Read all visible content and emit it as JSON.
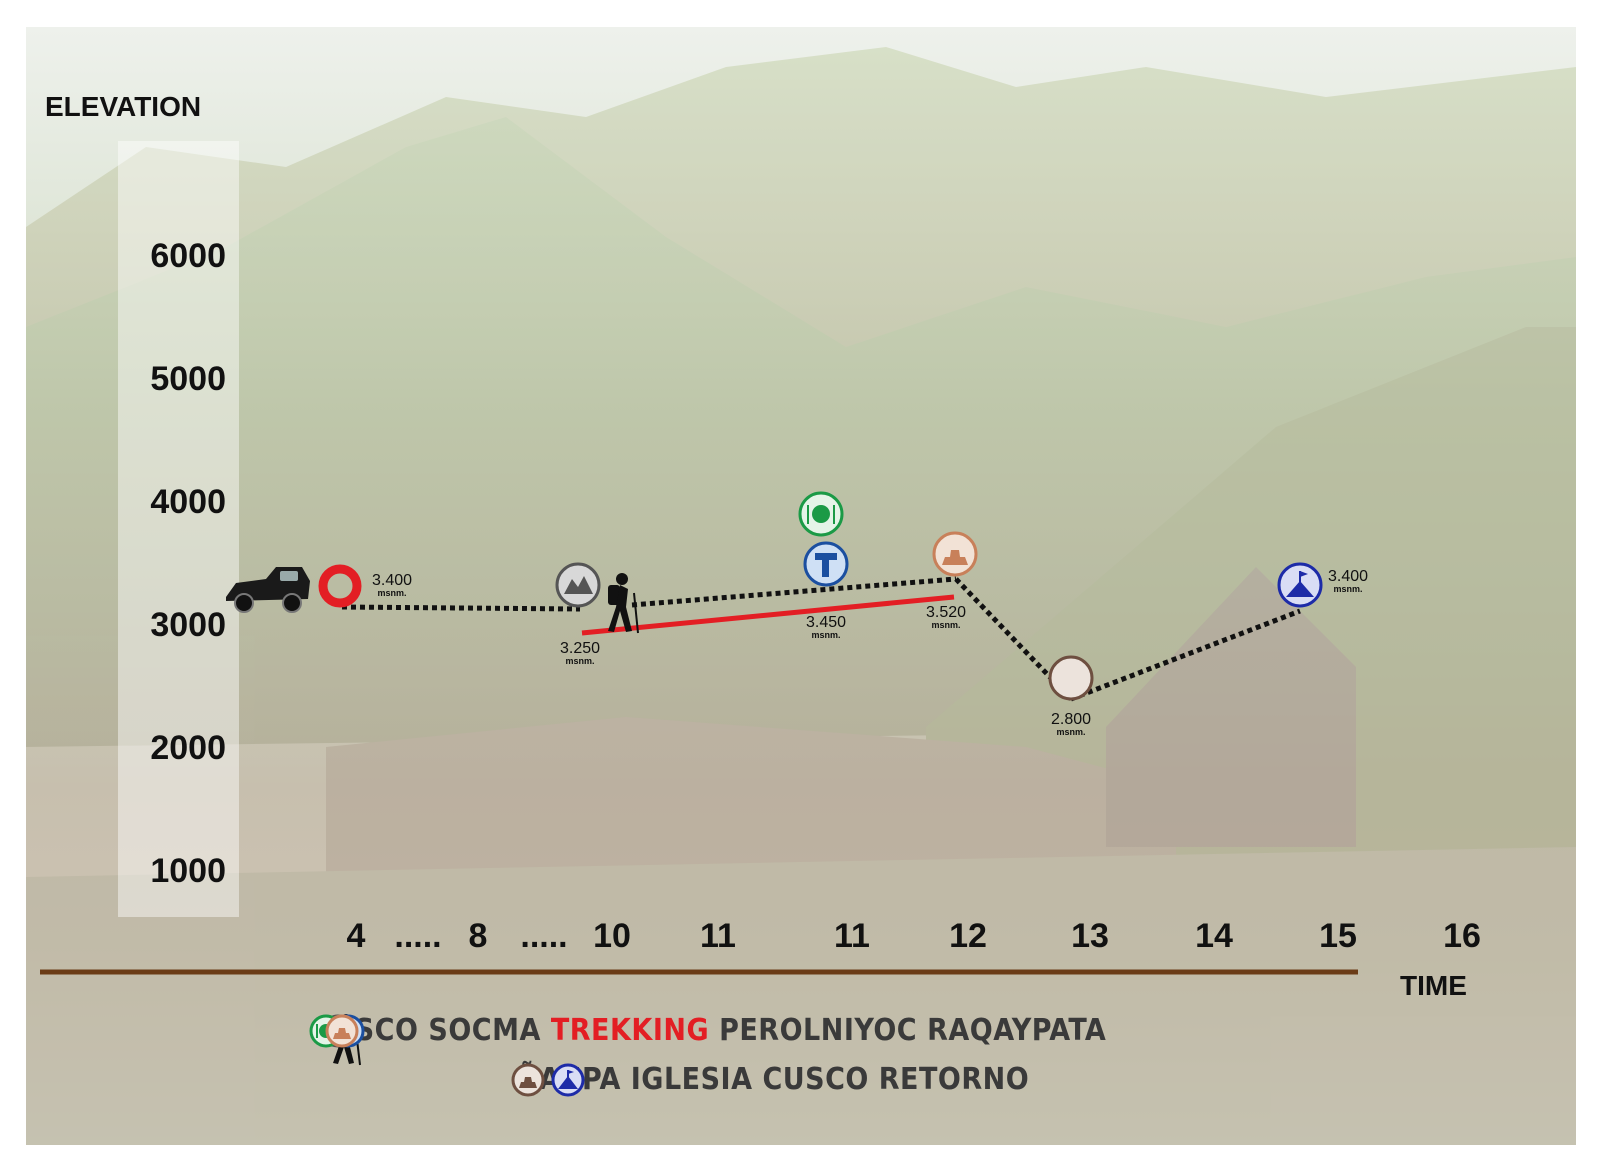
{
  "colors": {
    "dotted_line": "#111111",
    "trek_line": "#e31e24",
    "cusco": "#e31e24",
    "socma": "#555555",
    "perolniyoc_water": "#1b4fa0",
    "perolniyoc_food": "#1b9a46",
    "raqaypata": "#c8805a",
    "naupa": "#6e4f40",
    "cusco_retorno": "#1d2ba8",
    "time_axis": "#6b3c17"
  },
  "chart_data": {
    "type": "line",
    "ylabel": "ELEVATION",
    "xlabel": "TIME",
    "y_ticks": [
      6000,
      5000,
      4000,
      3000,
      2000,
      1000
    ],
    "x_ticks": [
      "4",
      ".....",
      "8",
      ".....",
      "10",
      "11",
      "11",
      "12",
      "13",
      "14",
      "15",
      "16"
    ],
    "points": [
      {
        "name": "CUSCO",
        "icon": "cusco-ring-icon",
        "elevation": 3400,
        "label": "3.400",
        "unit": "msnm."
      },
      {
        "name": "SOCMA",
        "icon": "mountain-village-icon",
        "elevation": 3250,
        "label": "3.250",
        "unit": "msnm."
      },
      {
        "name": "PEROLNIYOC",
        "icon": "waterfall-icon",
        "elevation": 3450,
        "label": "3.450",
        "unit": "msnm."
      },
      {
        "name": "RAQAYPATA",
        "icon": "ruins-icon",
        "elevation": 3520,
        "label": "3.520",
        "unit": "msnm."
      },
      {
        "name": "ÑAUPA IGLESIA",
        "icon": "temple-icon",
        "elevation": 2800,
        "label": "2.800",
        "unit": "msnm."
      },
      {
        "name": "CUSCO RETORNO",
        "icon": "summit-flag-icon",
        "elevation": 3400,
        "label": "3.400",
        "unit": "msnm."
      }
    ]
  },
  "legend": {
    "cusco": "CUSCO",
    "socma": "SOCMA",
    "trekking": "TREKKING",
    "perolniyoc": "PEROLNIYOC",
    "raqaypata": "RAQAYPATA",
    "naupa": "ÑAUPA IGLESIA",
    "cusco_retorno": "CUSCO RETORNO"
  }
}
